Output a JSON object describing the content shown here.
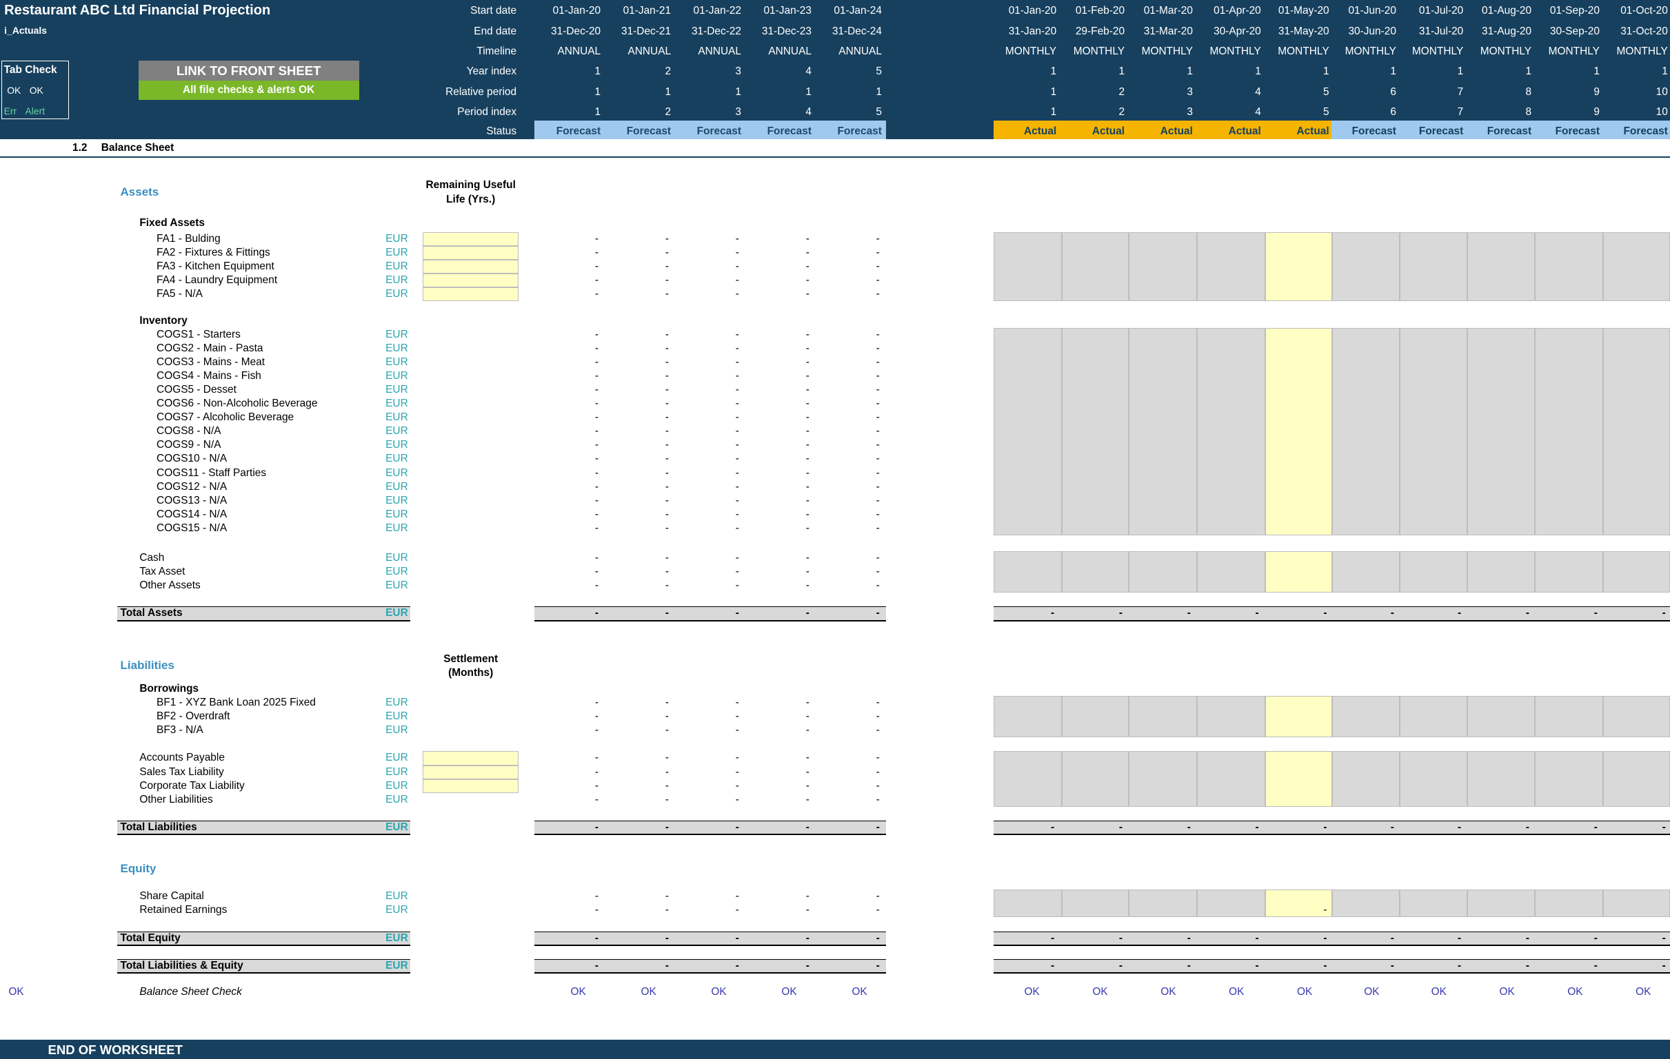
{
  "header": {
    "title": "Restaurant ABC Ltd Financial Projection",
    "sheet_name": "i_Actuals",
    "row_labels": [
      "Start date",
      "End date",
      "Timeline",
      "Year index",
      "Relative period",
      "Period index",
      "Status"
    ],
    "tab_check": {
      "title": "Tab Check",
      "ok1": "OK",
      "ok2": "OK",
      "err": "Err",
      "alert": "Alert"
    },
    "link_button": "LINK TO FRONT SHEET",
    "checks_banner": "All file checks & alerts OK"
  },
  "annual": {
    "start": [
      "01-Jan-20",
      "01-Jan-21",
      "01-Jan-22",
      "01-Jan-23",
      "01-Jan-24"
    ],
    "end": [
      "31-Dec-20",
      "31-Dec-21",
      "31-Dec-22",
      "31-Dec-23",
      "31-Dec-24"
    ],
    "timeline": [
      "ANNUAL",
      "ANNUAL",
      "ANNUAL",
      "ANNUAL",
      "ANNUAL"
    ],
    "year_index": [
      "1",
      "2",
      "3",
      "4",
      "5"
    ],
    "relative_period": [
      "1",
      "1",
      "1",
      "1",
      "1"
    ],
    "period_index": [
      "1",
      "2",
      "3",
      "4",
      "5"
    ],
    "status": [
      "Forecast",
      "Forecast",
      "Forecast",
      "Forecast",
      "Forecast"
    ]
  },
  "monthly": {
    "start": [
      "01-Jan-20",
      "01-Feb-20",
      "01-Mar-20",
      "01-Apr-20",
      "01-May-20",
      "01-Jun-20",
      "01-Jul-20",
      "01-Aug-20",
      "01-Sep-20",
      "01-Oct-20"
    ],
    "end": [
      "31-Jan-20",
      "29-Feb-20",
      "31-Mar-20",
      "30-Apr-20",
      "31-May-20",
      "30-Jun-20",
      "31-Jul-20",
      "31-Aug-20",
      "30-Sep-20",
      "31-Oct-20"
    ],
    "timeline": [
      "MONTHLY",
      "MONTHLY",
      "MONTHLY",
      "MONTHLY",
      "MONTHLY",
      "MONTHLY",
      "MONTHLY",
      "MONTHLY",
      "MONTHLY",
      "MONTHLY"
    ],
    "year_index": [
      "1",
      "1",
      "1",
      "1",
      "1",
      "1",
      "1",
      "1",
      "1",
      "1"
    ],
    "relative_period": [
      "1",
      "2",
      "3",
      "4",
      "5",
      "6",
      "7",
      "8",
      "9",
      "10"
    ],
    "period_index": [
      "1",
      "2",
      "3",
      "4",
      "5",
      "6",
      "7",
      "8",
      "9",
      "10"
    ],
    "status": [
      "Actual",
      "Actual",
      "Actual",
      "Actual",
      "Actual",
      "Forecast",
      "Forecast",
      "Forecast",
      "Forecast",
      "Forecast"
    ]
  },
  "section": {
    "number": "1.2",
    "title": "Balance Sheet"
  },
  "assets": {
    "heading": "Assets",
    "useful_life_header": "Remaining Useful Life (Yrs.)",
    "fixed_assets_heading": "Fixed Assets",
    "fixed_assets": [
      "FA1 - Bulding",
      "FA2 - Fixtures & Fittings",
      "FA3 - Kitchen Equipment",
      "FA4 - Laundry Equipment",
      "FA5 - N/A"
    ],
    "inventory_heading": "Inventory",
    "inventory": [
      "COGS1 - Starters",
      "COGS2 - Main - Pasta",
      "COGS3 - Mains - Meat",
      "COGS4 - Mains - Fish",
      "COGS5 - Desset",
      "COGS6 - Non-Alcoholic Beverage",
      "COGS7 - Alcoholic Beverage",
      "COGS8 - N/A",
      "COGS9 - N/A",
      "COGS10 - N/A",
      "COGS11 - Staff Parties",
      "COGS12 - N/A",
      "COGS13 - N/A",
      "COGS14 - N/A",
      "COGS15 - N/A"
    ],
    "other": [
      "Cash",
      "Tax Asset",
      "Other Assets"
    ],
    "total": "Total Assets"
  },
  "liabilities": {
    "heading": "Liabilities",
    "settlement_header": "Settlement (Months)",
    "borrowings_heading": "Borrowings",
    "borrowings": [
      "BF1 - XYZ Bank Loan 2025 Fixed",
      "BF2 - Overdraft",
      "BF3 - N/A"
    ],
    "other": [
      "Accounts Payable",
      "Sales Tax Liability",
      "Corporate Tax Liability",
      "Other Liabilities"
    ],
    "total": "Total Liabilities"
  },
  "equity": {
    "heading": "Equity",
    "items": [
      "Share Capital",
      "Retained Earnings"
    ],
    "total": "Total Equity"
  },
  "total_le": "Total Liabilities & Equity",
  "unit": "EUR",
  "dash": "-",
  "check": {
    "left": "OK",
    "label": "Balance Sheet Check",
    "value": "OK"
  },
  "footer": "END OF WORKSHEET"
}
